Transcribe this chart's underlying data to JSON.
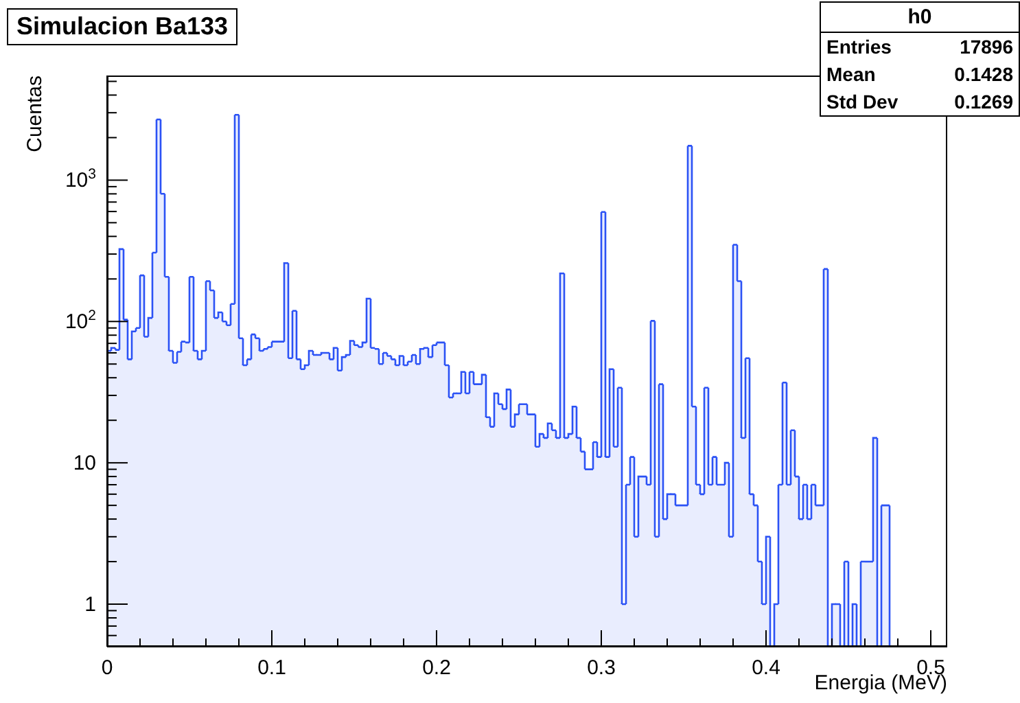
{
  "chart_data": {
    "type": "histogram",
    "title": "Simulacion Ba133",
    "xlabel": "Energia (MeV)",
    "ylabel": "Cuentas",
    "annotations": [
      "h0",
      "Entries 17896",
      "Mean 0.1428",
      "Std Dev 0.1269"
    ],
    "color": "#2b52f5",
    "log": "y",
    "xlim": [
      0,
      0.51
    ],
    "ylim": [
      0.5,
      5500
    ],
    "xticks": [
      0,
      {
        "value": 0.02,
        "label": null
      },
      {
        "value": 0.04,
        "label": null
      },
      {
        "value": 0.06,
        "label": null
      },
      {
        "value": 0.08,
        "label": null
      },
      0.1,
      {
        "value": 0.12,
        "label": null
      },
      {
        "value": 0.14,
        "label": null
      },
      {
        "value": 0.16,
        "label": null
      },
      {
        "value": 0.18,
        "label": null
      },
      0.2,
      {
        "value": 0.22,
        "label": null
      },
      {
        "value": 0.24,
        "label": null
      },
      {
        "value": 0.26,
        "label": null
      },
      {
        "value": 0.28,
        "label": null
      },
      0.3,
      {
        "value": 0.32,
        "label": null
      },
      {
        "value": 0.34,
        "label": null
      },
      {
        "value": 0.36,
        "label": null
      },
      {
        "value": 0.38,
        "label": null
      },
      0.4,
      {
        "value": 0.42,
        "label": null
      },
      {
        "value": 0.44,
        "label": null
      },
      {
        "value": 0.46,
        "label": null
      },
      {
        "value": 0.48,
        "label": null
      },
      0.5
    ],
    "yticks": [
      {
        "value": 0.6,
        "label": null
      },
      {
        "value": 0.7,
        "label": null
      },
      {
        "value": 0.8,
        "label": null
      },
      {
        "value": 0.9,
        "label": null
      },
      1,
      {
        "value": 2,
        "label": null
      },
      {
        "value": 3,
        "label": null
      },
      {
        "value": 4,
        "label": null
      },
      {
        "value": 5,
        "label": null
      },
      {
        "value": 6,
        "label": null
      },
      {
        "value": 7,
        "label": null
      },
      {
        "value": 8,
        "label": null
      },
      {
        "value": 9,
        "label": null
      },
      10,
      {
        "value": 20,
        "label": null
      },
      {
        "value": 30,
        "label": null
      },
      {
        "value": 40,
        "label": null
      },
      {
        "value": 50,
        "label": null
      },
      {
        "value": 60,
        "label": null
      },
      {
        "value": 70,
        "label": null
      },
      {
        "value": 80,
        "label": null
      },
      {
        "value": 90,
        "label": null
      },
      {
        "value": 100,
        "label": "10$^{2}$"
      },
      {
        "value": 200,
        "label": null
      },
      {
        "value": 300,
        "label": null
      },
      {
        "value": 400,
        "label": null
      },
      {
        "value": 500,
        "label": null
      },
      {
        "value": 600,
        "label": null
      },
      {
        "value": 700,
        "label": null
      },
      {
        "value": 800,
        "label": null
      },
      {
        "value": 900,
        "label": null
      },
      {
        "value": 1000,
        "label": "10$^{3}$"
      },
      {
        "value": 2000,
        "label": null
      },
      {
        "value": 3000,
        "label": null
      },
      {
        "value": 4000,
        "label": null
      },
      {
        "value": 5000,
        "label": null
      }
    ],
    "bins": [
      0,
      0.0025,
      0.005,
      0.0075,
      0.01,
      0.0125,
      0.015,
      0.0175,
      0.02,
      0.0225,
      0.025,
      0.0275,
      0.03,
      0.0325,
      0.035,
      0.0375,
      0.04,
      0.0425,
      0.045,
      0.0475,
      0.05,
      0.0525,
      0.055,
      0.0575,
      0.06,
      0.0625,
      0.065,
      0.0675,
      0.07,
      0.0725,
      0.075,
      0.0775,
      0.08,
      0.0825,
      0.085,
      0.0875,
      0.09,
      0.0925,
      0.095,
      0.0975,
      0.1,
      0.1025,
      0.105,
      0.1075,
      0.11,
      0.1125,
      0.115,
      0.1175,
      0.12,
      0.1225,
      0.125,
      0.1275,
      0.13,
      0.1325,
      0.135,
      0.1375,
      0.14,
      0.1425,
      0.145,
      0.1475,
      0.15,
      0.1525,
      0.155,
      0.1575,
      0.16,
      0.1625,
      0.165,
      0.1675,
      0.17,
      0.1725,
      0.175,
      0.1775,
      0.18,
      0.1825,
      0.185,
      0.1875,
      0.19,
      0.1925,
      0.195,
      0.1975,
      0.2,
      0.2025,
      0.205,
      0.2075,
      0.21,
      0.2125,
      0.215,
      0.2175,
      0.22,
      0.2225,
      0.225,
      0.2275,
      0.23,
      0.2325,
      0.235,
      0.2375,
      0.24,
      0.2425,
      0.245,
      0.2475,
      0.25,
      0.2525,
      0.255,
      0.2575,
      0.26,
      0.2625,
      0.265,
      0.2675,
      0.27,
      0.2725,
      0.275,
      0.2775,
      0.28,
      0.2825,
      0.285,
      0.2875,
      0.29,
      0.2925,
      0.295,
      0.2975,
      0.3,
      0.3025,
      0.305,
      0.3075,
      0.31,
      0.3125,
      0.315,
      0.3175,
      0.32,
      0.3225,
      0.325,
      0.3275,
      0.33,
      0.3325,
      0.335,
      0.3375,
      0.34,
      0.3425,
      0.345,
      0.3475,
      0.35,
      0.3525,
      0.355,
      0.3575,
      0.36,
      0.3625,
      0.365,
      0.3675,
      0.37,
      0.3725,
      0.375,
      0.3775,
      0.38,
      0.3825,
      0.385,
      0.3875,
      0.39,
      0.3925,
      0.395,
      0.3975,
      0.4,
      0.4025,
      0.405,
      0.4075,
      0.41,
      0.4125,
      0.415,
      0.4175,
      0.42,
      0.4225,
      0.425,
      0.4275,
      0.43,
      0.4325,
      0.435,
      0.4375,
      0.44,
      0.4425,
      0.445,
      0.4475,
      0.45,
      0.4525,
      0.455,
      0.4575,
      0.46,
      0.4625,
      0.465,
      0.4675,
      0.47,
      0.4725,
      0.475
    ],
    "values": [
      62,
      65,
      63,
      325,
      103,
      54,
      85,
      90,
      212,
      78,
      106,
      307,
      2690,
      801,
      207,
      62,
      51,
      61,
      72,
      71,
      207,
      62,
      54,
      62,
      193,
      166,
      106,
      116,
      100,
      94,
      133,
      2900,
      76,
      49,
      54,
      81,
      76,
      62,
      64,
      66,
      72,
      72,
      72,
      259,
      55,
      119,
      54,
      46,
      49,
      62,
      58,
      58,
      60,
      60,
      54,
      65,
      45,
      56,
      58,
      73,
      68,
      66,
      71,
      145,
      65,
      64,
      50,
      60,
      57,
      54,
      49,
      57,
      49,
      52,
      58,
      50,
      64,
      65,
      56,
      68,
      71,
      71,
      49,
      29,
      31,
      31,
      44,
      31,
      44,
      36,
      36,
      42,
      21,
      18,
      31,
      26,
      24,
      33,
      18,
      22,
      26,
      26,
      22,
      22,
      13,
      16,
      15,
      19,
      17,
      15,
      219,
      15,
      16,
      25,
      15,
      12,
      9,
      9,
      14,
      11,
      596,
      11,
      46,
      13,
      34,
      1,
      7,
      11,
      3,
      8,
      8,
      7,
      101,
      3,
      36,
      4,
      6,
      6,
      5,
      5,
      5,
      1750,
      25,
      7,
      6,
      34,
      7,
      11,
      7,
      7,
      10,
      3,
      349,
      193,
      15,
      55,
      6,
      5,
      2,
      1,
      3,
      null,
      1,
      7,
      37,
      7,
      17,
      8,
      4,
      7,
      4,
      7,
      5,
      5,
      235,
      null,
      1,
      1,
      null,
      2,
      null,
      1,
      null,
      2,
      2,
      2,
      15,
      null,
      5,
      5
    ]
  }
}
